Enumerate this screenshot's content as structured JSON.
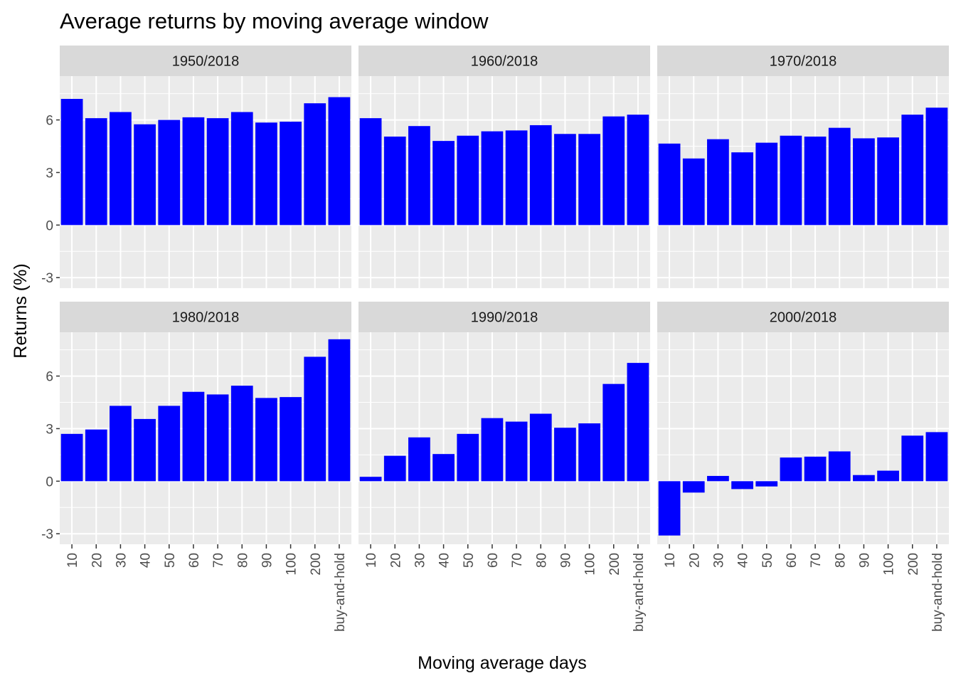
{
  "chart_data": {
    "type": "bar",
    "title": "Average returns by moving average window",
    "xlabel": "Moving average days",
    "ylabel": "Returns (%)",
    "categories": [
      "10",
      "20",
      "30",
      "40",
      "50",
      "60",
      "70",
      "80",
      "90",
      "100",
      "200",
      "buy-and-hold"
    ],
    "y_ticks": [
      -3,
      0,
      3,
      6
    ],
    "y_tick_labels": [
      "-3",
      "0",
      "3",
      "6"
    ],
    "ylim": [
      -3.6,
      8.5
    ],
    "grid": true,
    "bar_color": "#0000ff",
    "panel_background": "#ebebeb",
    "strip_background": "#d9d9d9",
    "facets": [
      {
        "label": "1950/2018",
        "values": [
          7.2,
          6.1,
          6.45,
          5.75,
          6.0,
          6.15,
          6.1,
          6.45,
          5.85,
          5.9,
          6.95,
          7.3
        ]
      },
      {
        "label": "1960/2018",
        "values": [
          6.1,
          5.05,
          5.65,
          4.8,
          5.1,
          5.35,
          5.4,
          5.7,
          5.2,
          5.2,
          6.2,
          6.3
        ]
      },
      {
        "label": "1970/2018",
        "values": [
          4.65,
          3.8,
          4.9,
          4.15,
          4.7,
          5.1,
          5.05,
          5.55,
          4.95,
          5.0,
          6.3,
          6.7
        ]
      },
      {
        "label": "1980/2018",
        "values": [
          2.7,
          2.95,
          4.3,
          3.55,
          4.3,
          5.1,
          4.95,
          5.45,
          4.75,
          4.8,
          7.1,
          8.1
        ]
      },
      {
        "label": "1990/2018",
        "values": [
          0.25,
          1.45,
          2.5,
          1.55,
          2.7,
          3.6,
          3.4,
          3.85,
          3.05,
          3.3,
          5.55,
          6.75
        ]
      },
      {
        "label": "2000/2018",
        "values": [
          -3.1,
          -0.65,
          0.3,
          -0.45,
          -0.3,
          1.35,
          1.4,
          1.7,
          0.35,
          0.6,
          2.6,
          2.8
        ]
      }
    ]
  }
}
